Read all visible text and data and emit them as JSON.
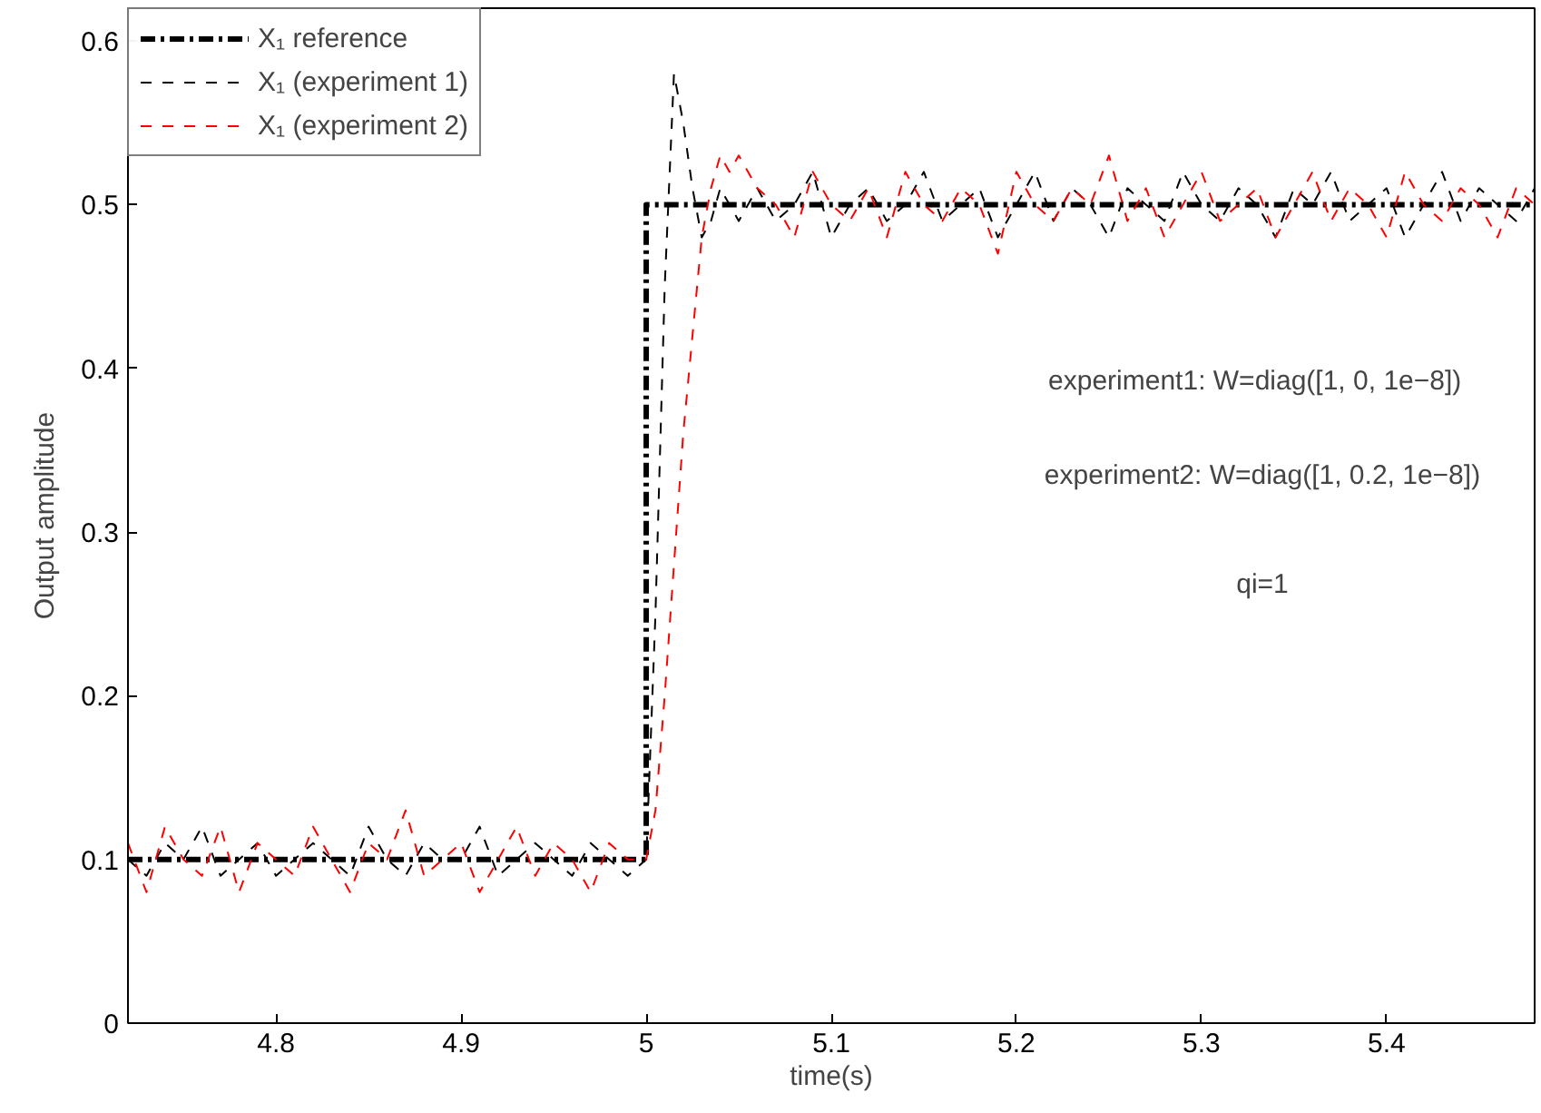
{
  "chart_data": {
    "type": "line",
    "xlabel": "time(s)",
    "ylabel": "Output amplitude",
    "xlim": [
      4.72,
      5.48
    ],
    "xticks": [
      4.8,
      4.9,
      5,
      5.1,
      5.2,
      5.3,
      5.4
    ],
    "ylim": [
      0,
      0.62
    ],
    "yticks": [
      0,
      0.1,
      0.2,
      0.3,
      0.4,
      0.5,
      0.6
    ],
    "grid": false,
    "legend": "top left",
    "marker": "none",
    "annotations": [
      "experiment1: W=diag([1,  0,  1e−8])",
      "experiment2: W=diag([1, 0.2, 1e−8])",
      "qi=1"
    ],
    "series": [
      {
        "name": "X₁ reference",
        "color": "#000000",
        "line_style": "dashdot",
        "x": [
          4.72,
          5.0,
          5.0,
          5.48
        ],
        "values": [
          0.1,
          0.1,
          0.5,
          0.5
        ]
      },
      {
        "name": "X₁ (experiment 1)",
        "color": "#000000",
        "line_style": "dashed",
        "x": [
          4.72,
          4.73,
          4.74,
          4.75,
          4.76,
          4.77,
          4.78,
          4.79,
          4.8,
          4.81,
          4.82,
          4.83,
          4.84,
          4.85,
          4.86,
          4.87,
          4.88,
          4.89,
          4.9,
          4.91,
          4.92,
          4.93,
          4.94,
          4.95,
          4.96,
          4.97,
          4.98,
          4.99,
          5.0,
          5.005,
          5.01,
          5.015,
          5.02,
          5.025,
          5.03,
          5.035,
          5.04,
          5.05,
          5.06,
          5.07,
          5.08,
          5.09,
          5.1,
          5.11,
          5.12,
          5.13,
          5.14,
          5.15,
          5.16,
          5.17,
          5.18,
          5.19,
          5.2,
          5.21,
          5.22,
          5.23,
          5.24,
          5.25,
          5.26,
          5.27,
          5.28,
          5.29,
          5.3,
          5.31,
          5.32,
          5.33,
          5.34,
          5.35,
          5.36,
          5.37,
          5.38,
          5.39,
          5.4,
          5.41,
          5.42,
          5.43,
          5.44,
          5.45,
          5.46,
          5.47,
          5.48
        ],
        "values": [
          0.1,
          0.09,
          0.11,
          0.1,
          0.12,
          0.09,
          0.1,
          0.11,
          0.09,
          0.1,
          0.11,
          0.1,
          0.09,
          0.12,
          0.1,
          0.09,
          0.11,
          0.1,
          0.1,
          0.12,
          0.09,
          0.1,
          0.11,
          0.1,
          0.09,
          0.11,
          0.1,
          0.09,
          0.1,
          0.25,
          0.45,
          0.58,
          0.55,
          0.51,
          0.48,
          0.49,
          0.51,
          0.49,
          0.51,
          0.49,
          0.5,
          0.52,
          0.48,
          0.5,
          0.51,
          0.49,
          0.5,
          0.52,
          0.49,
          0.5,
          0.51,
          0.48,
          0.5,
          0.52,
          0.49,
          0.51,
          0.5,
          0.48,
          0.51,
          0.5,
          0.49,
          0.52,
          0.5,
          0.49,
          0.51,
          0.5,
          0.48,
          0.51,
          0.5,
          0.52,
          0.49,
          0.5,
          0.51,
          0.48,
          0.5,
          0.52,
          0.49,
          0.51,
          0.5,
          0.49,
          0.51
        ]
      },
      {
        "name": "X₁ (experiment 2)",
        "color": "#ff0000",
        "line_style": "dashed",
        "x": [
          4.72,
          4.73,
          4.74,
          4.75,
          4.76,
          4.77,
          4.78,
          4.79,
          4.8,
          4.81,
          4.82,
          4.83,
          4.84,
          4.85,
          4.86,
          4.87,
          4.88,
          4.89,
          4.9,
          4.91,
          4.92,
          4.93,
          4.94,
          4.95,
          4.96,
          4.97,
          4.98,
          4.99,
          5.0,
          5.005,
          5.01,
          5.015,
          5.02,
          5.025,
          5.03,
          5.035,
          5.04,
          5.045,
          5.05,
          5.055,
          5.06,
          5.07,
          5.08,
          5.09,
          5.1,
          5.11,
          5.12,
          5.13,
          5.14,
          5.15,
          5.16,
          5.17,
          5.18,
          5.19,
          5.2,
          5.21,
          5.22,
          5.23,
          5.24,
          5.25,
          5.26,
          5.27,
          5.28,
          5.29,
          5.3,
          5.31,
          5.32,
          5.33,
          5.34,
          5.35,
          5.36,
          5.37,
          5.38,
          5.39,
          5.4,
          5.41,
          5.42,
          5.43,
          5.44,
          5.45,
          5.46,
          5.47,
          5.48
        ],
        "values": [
          0.11,
          0.08,
          0.12,
          0.1,
          0.09,
          0.12,
          0.08,
          0.11,
          0.1,
          0.09,
          0.12,
          0.1,
          0.08,
          0.11,
          0.1,
          0.13,
          0.09,
          0.1,
          0.11,
          0.08,
          0.1,
          0.12,
          0.09,
          0.11,
          0.1,
          0.08,
          0.11,
          0.1,
          0.1,
          0.13,
          0.2,
          0.28,
          0.36,
          0.42,
          0.48,
          0.51,
          0.53,
          0.52,
          0.53,
          0.52,
          0.51,
          0.5,
          0.48,
          0.52,
          0.5,
          0.49,
          0.51,
          0.48,
          0.52,
          0.5,
          0.49,
          0.51,
          0.5,
          0.47,
          0.52,
          0.5,
          0.49,
          0.51,
          0.5,
          0.53,
          0.49,
          0.51,
          0.48,
          0.5,
          0.52,
          0.49,
          0.5,
          0.51,
          0.48,
          0.5,
          0.52,
          0.49,
          0.51,
          0.5,
          0.48,
          0.52,
          0.5,
          0.49,
          0.51,
          0.5,
          0.48,
          0.51,
          0.5
        ]
      }
    ]
  }
}
